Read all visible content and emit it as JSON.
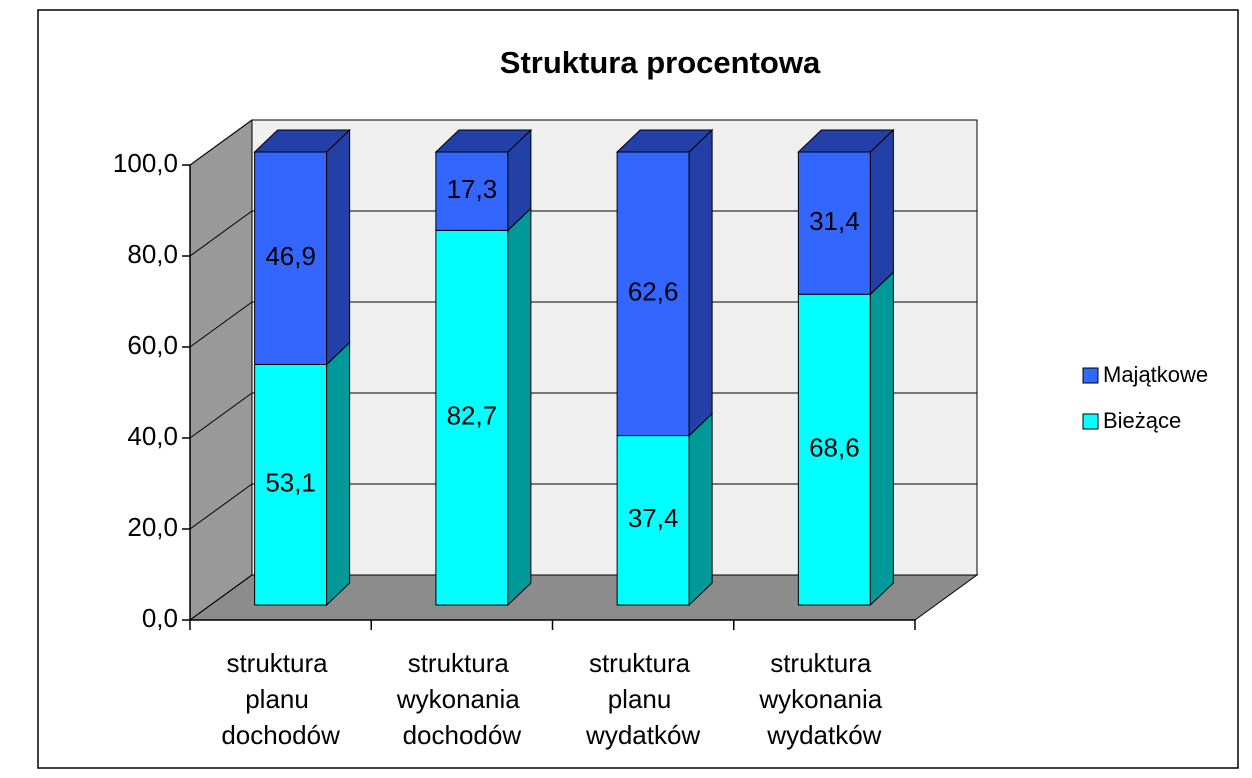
{
  "chart_data": {
    "type": "bar3d_stacked",
    "title": "Struktura procentowa",
    "categories": [
      "struktura planu dochodów",
      "struktura wykonania dochodów",
      "struktura planu wydatków",
      "struktura wykonania wydatków"
    ],
    "series": [
      {
        "name": "Bieżące",
        "color": "#00FFFF",
        "side_color": "#009999",
        "values": [
          53.1,
          82.7,
          37.4,
          68.6
        ],
        "value_labels": [
          "53,1",
          "82,7",
          "37,4",
          "68,6"
        ]
      },
      {
        "name": "Majątkowe",
        "color": "#3366FF",
        "side_color": "#2340A8",
        "values": [
          46.9,
          17.3,
          62.6,
          31.4
        ],
        "value_labels": [
          "46,9",
          "17,3",
          "62,6",
          "31,4"
        ]
      }
    ],
    "ylim": [
      0,
      100
    ],
    "yticks": [
      {
        "value": 0,
        "label": "0,0"
      },
      {
        "value": 20,
        "label": "20,0"
      },
      {
        "value": 40,
        "label": "40,0"
      },
      {
        "value": 60,
        "label": "60,0"
      },
      {
        "value": 80,
        "label": "80,0"
      },
      {
        "value": 100,
        "label": "100,0"
      }
    ],
    "grid": true,
    "legend": "right"
  }
}
